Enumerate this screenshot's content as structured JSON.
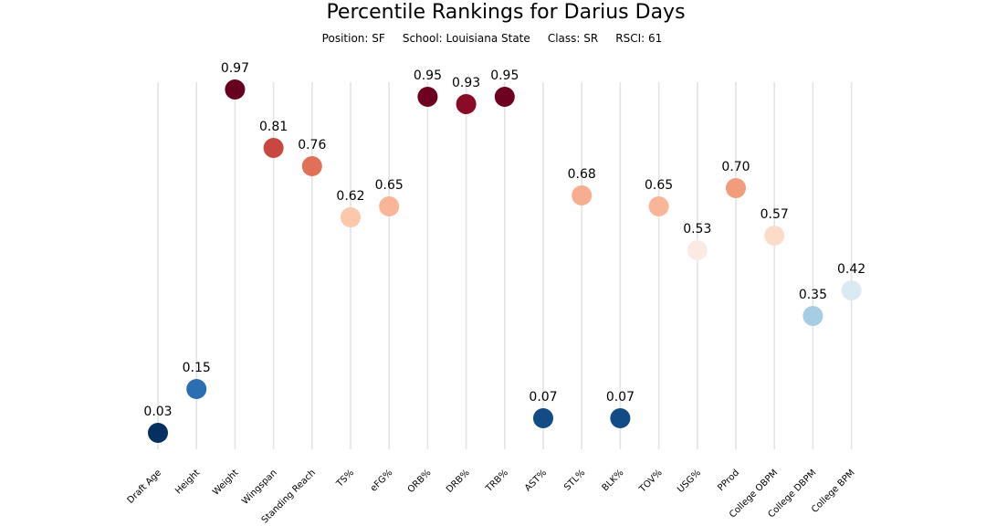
{
  "chart_data": {
    "type": "scatter",
    "title": "Percentile Rankings for Darius Days",
    "subtitle": "Position: SF     School: Louisiana State     Class: SR     RSCI: 61",
    "categories": [
      "Draft Age",
      "Height",
      "Weight",
      "Wingspan",
      "Standing Reach",
      "TS%",
      "eFG%",
      "ORB%",
      "DRB%",
      "TRB%",
      "AST%",
      "STL%",
      "BLK%",
      "TOV%",
      "USG%",
      "PProd",
      "College OBPM",
      "College DBPM",
      "College BPM"
    ],
    "values": [
      0.03,
      0.15,
      0.97,
      0.81,
      0.76,
      0.62,
      0.65,
      0.95,
      0.93,
      0.95,
      0.07,
      0.68,
      0.07,
      0.65,
      0.53,
      0.7,
      0.57,
      0.35,
      0.42
    ],
    "value_labels": [
      "0.03",
      "0.15",
      "0.97",
      "0.81",
      "0.76",
      "0.62",
      "0.65",
      "0.95",
      "0.93",
      "0.95",
      "0.07",
      "0.68",
      "0.07",
      "0.65",
      "0.53",
      "0.70",
      "0.57",
      "0.35",
      "0.42"
    ],
    "ylim": [
      0,
      1
    ],
    "colormap": "RdBu_r",
    "colors": [
      "#053061",
      "#2b6fb2",
      "#67001f",
      "#c94741",
      "#e07058",
      "#fbc8ab",
      "#f8b597",
      "#6d011f",
      "#8a0b25",
      "#6d011f",
      "#134b86",
      "#f7ad8f",
      "#134b86",
      "#f8b597",
      "#f9ebe3",
      "#f19d7c",
      "#fcdcc9",
      "#a6cde3",
      "#dae9f2"
    ],
    "grid": false,
    "xlabel": "",
    "ylabel": ""
  }
}
